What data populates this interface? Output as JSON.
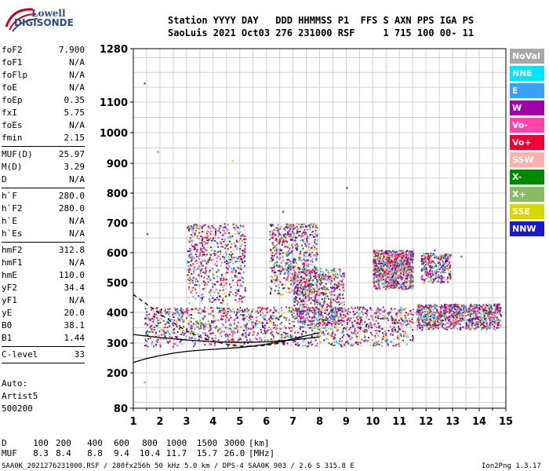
{
  "logo": {
    "line1": "Lowell",
    "line2": "DIGISONDE"
  },
  "header": {
    "labels": "Station YYYY DAY   DDD HHMMSS P1  FFS S AXN PPS IGA PS",
    "values": "SaoLuis 2021 Oct03 276 231000 RSF     1 715 100 00- 11"
  },
  "params": [
    {
      "k": "foF2",
      "v": "7.900"
    },
    {
      "k": "foF1",
      "v": "N/A"
    },
    {
      "k": "foFlp",
      "v": "N/A"
    },
    {
      "k": "foE",
      "v": "N/A"
    },
    {
      "k": "foEp",
      "v": "0.35"
    },
    {
      "k": "fxI",
      "v": "5.75"
    },
    {
      "k": "foEs",
      "v": "N/A"
    },
    {
      "k": "fmin",
      "v": "2.15"
    },
    {
      "k": "MUF(D)",
      "v": "25.97"
    },
    {
      "k": "M(D)",
      "v": "3.29"
    },
    {
      "k": "D",
      "v": "N/A"
    },
    {
      "k": "h`F",
      "v": "280.0"
    },
    {
      "k": "h`F2",
      "v": "280.0"
    },
    {
      "k": "h`E",
      "v": "N/A"
    },
    {
      "k": "h`Es",
      "v": "N/A"
    },
    {
      "k": "hmF2",
      "v": "312.8"
    },
    {
      "k": "hmF1",
      "v": "N/A"
    },
    {
      "k": "hmE",
      "v": "110.0"
    },
    {
      "k": "yF2",
      "v": "34.4"
    },
    {
      "k": "yF1",
      "v": "N/A"
    },
    {
      "k": "yE",
      "v": "20.0"
    },
    {
      "k": "B0",
      "v": "38.1"
    },
    {
      "k": "B1",
      "v": "1.44"
    },
    {
      "k": "C-level",
      "v": "33"
    }
  ],
  "auto": {
    "l1": "Auto:",
    "l2": "Artist5",
    "l3": "500200"
  },
  "legend": [
    {
      "label": "NoVal",
      "color": "#a8a8a8"
    },
    {
      "label": "NNE",
      "color": "#00e5ff"
    },
    {
      "label": "E",
      "color": "#3aa0ff"
    },
    {
      "label": "W",
      "color": "#a000a8"
    },
    {
      "label": "Vo-",
      "color": "#ff44aa"
    },
    {
      "label": "Vo+",
      "color": "#ee0033"
    },
    {
      "label": "SSW",
      "color": "#ffb0a8"
    },
    {
      "label": "X-",
      "color": "#008800"
    },
    {
      "label": "X+",
      "color": "#88bb66"
    },
    {
      "label": "SSE",
      "color": "#d8d800"
    },
    {
      "label": "NNW",
      "color": "#1a1acc"
    }
  ],
  "chart_data": {
    "type": "scatter",
    "title": "",
    "xlabel": "",
    "ylabel": "",
    "xlim": [
      1,
      15
    ],
    "ylim": [
      80,
      1280
    ],
    "x_ticks": [
      "1",
      "2",
      "3",
      "4",
      "5",
      "6",
      "7",
      "8",
      "9",
      "10",
      "11",
      "12",
      "13",
      "14",
      "15"
    ],
    "y_ticks": [
      "80",
      "200",
      "300",
      "400",
      "500",
      "600",
      "700",
      "800",
      "900",
      "1000",
      "1100",
      "1280"
    ],
    "grid": true,
    "legend_position": "right",
    "curves": [
      {
        "style": "solid",
        "x": [
          1,
          1.5,
          2,
          2.5,
          3,
          3.5,
          4,
          4.5,
          5,
          5.5,
          6,
          6.5,
          7,
          7.5,
          8
        ],
        "y": [
          235,
          248,
          258,
          266,
          272,
          276,
          279,
          282,
          285,
          290,
          296,
          304,
          314,
          324,
          334
        ]
      },
      {
        "style": "dashed",
        "x": [
          1,
          1.5,
          2,
          2.5,
          3,
          3.5,
          4,
          4.5,
          5,
          5.5,
          6,
          6.5,
          7,
          7.3
        ],
        "y": [
          460,
          428,
          395,
          366,
          340,
          320,
          306,
          296,
          290,
          289,
          292,
          300,
          312,
          320
        ]
      },
      {
        "style": "solid",
        "x": [
          1,
          2,
          3,
          4,
          5,
          6,
          7,
          8
        ],
        "y": [
          328,
          318,
          310,
          304,
          302,
          304,
          310,
          320
        ]
      }
    ],
    "trace_clusters": [
      {
        "x": [
          1.4,
          11.5
        ],
        "y": [
          290,
          420
        ],
        "w": 5
      },
      {
        "x": [
          3.0,
          5.2
        ],
        "y": [
          430,
          700
        ],
        "w": 2
      },
      {
        "x": [
          6.1,
          7.9
        ],
        "y": [
          460,
          700
        ],
        "w": 2
      },
      {
        "x": [
          7.0,
          8.9
        ],
        "y": [
          360,
          550
        ],
        "w": 2
      },
      {
        "x": [
          10.0,
          11.5
        ],
        "y": [
          480,
          610
        ],
        "w": 3
      },
      {
        "x": [
          11.8,
          12.9
        ],
        "y": [
          500,
          600
        ],
        "w": 1
      },
      {
        "x": [
          11.6,
          14.8
        ],
        "y": [
          345,
          430
        ],
        "w": 3
      }
    ],
    "bottom_table": {
      "d_label": "D",
      "d_values": [
        "100",
        "200",
        "400",
        "600",
        "800",
        "1000",
        "1500",
        "3000"
      ],
      "d_unit": "[km]",
      "muf_label": "MUF",
      "muf_values": [
        "8.3",
        "8.4",
        "8.8",
        "9.4",
        "10.4",
        "11.7",
        "15.7",
        "26.0"
      ],
      "muf_unit": "[MHz]"
    }
  },
  "footer": {
    "left": "SAA0K_2021276231000.RSF / 280fx256h 50 kHz 5.0 km / DPS-4 SAA0K 903 / 2.6 S 315.8 E",
    "right": "Ion2Png 1.3.17"
  }
}
